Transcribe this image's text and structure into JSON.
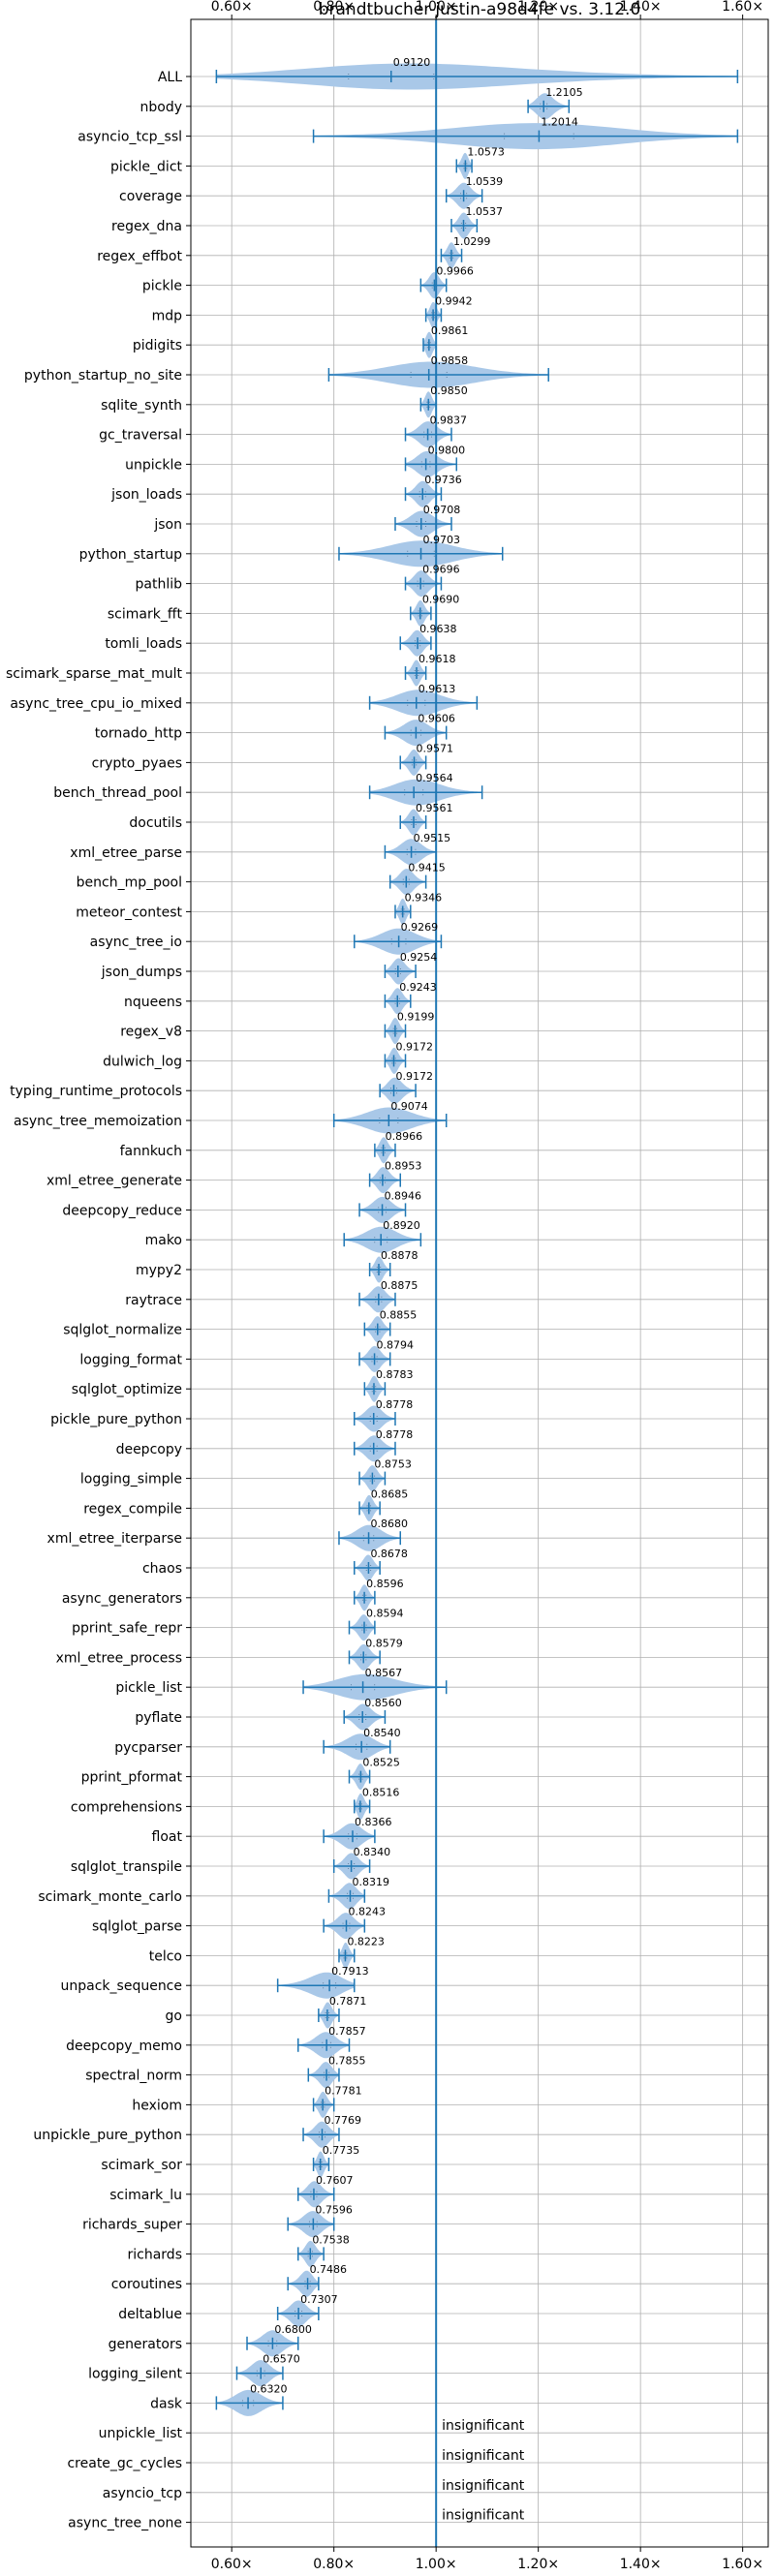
{
  "chart_data": {
    "type": "violin",
    "title": "brandtbucher-justin-a98d4fe vs. 3.12.0",
    "x_ticks": [
      "0.60×",
      "0.80×",
      "1.00×",
      "1.20×",
      "1.40×",
      "1.60×"
    ],
    "x_tick_values": [
      0.6,
      0.8,
      1.0,
      1.2,
      1.4,
      1.6
    ],
    "xlim": [
      0.52,
      1.65
    ],
    "reference_line": 1.0,
    "grid": true,
    "colors": {
      "violin": "#a9c8e8",
      "line": "#1f77b4",
      "grid": "#b0b0b0"
    },
    "benchmarks": [
      {
        "name": "ALL",
        "value": "0.9120",
        "v": 0.912,
        "min": 0.57,
        "max": 1.59
      },
      {
        "name": "nbody",
        "value": "1.2105",
        "v": 1.2105,
        "min": 1.18,
        "max": 1.26
      },
      {
        "name": "asyncio_tcp_ssl",
        "value": "1.2014",
        "v": 1.2014,
        "min": 0.76,
        "max": 1.59
      },
      {
        "name": "pickle_dict",
        "value": "1.0573",
        "v": 1.0573,
        "min": 1.04,
        "max": 1.07
      },
      {
        "name": "coverage",
        "value": "1.0539",
        "v": 1.0539,
        "min": 1.02,
        "max": 1.09
      },
      {
        "name": "regex_dna",
        "value": "1.0537",
        "v": 1.0537,
        "min": 1.03,
        "max": 1.08
      },
      {
        "name": "regex_effbot",
        "value": "1.0299",
        "v": 1.0299,
        "min": 1.01,
        "max": 1.05
      },
      {
        "name": "pickle",
        "value": "0.9966",
        "v": 0.9966,
        "min": 0.97,
        "max": 1.02
      },
      {
        "name": "mdp",
        "value": "0.9942",
        "v": 0.9942,
        "min": 0.98,
        "max": 1.01
      },
      {
        "name": "pidigits",
        "value": "0.9861",
        "v": 0.9861,
        "min": 0.975,
        "max": 1.0
      },
      {
        "name": "python_startup_no_site",
        "value": "0.9858",
        "v": 0.9858,
        "min": 0.79,
        "max": 1.22
      },
      {
        "name": "sqlite_synth",
        "value": "0.9850",
        "v": 0.985,
        "min": 0.97,
        "max": 1.0
      },
      {
        "name": "gc_traversal",
        "value": "0.9837",
        "v": 0.9837,
        "min": 0.94,
        "max": 1.03
      },
      {
        "name": "unpickle",
        "value": "0.9800",
        "v": 0.98,
        "min": 0.94,
        "max": 1.04
      },
      {
        "name": "json_loads",
        "value": "0.9736",
        "v": 0.9736,
        "min": 0.94,
        "max": 1.01
      },
      {
        "name": "json",
        "value": "0.9708",
        "v": 0.9708,
        "min": 0.92,
        "max": 1.03
      },
      {
        "name": "python_startup",
        "value": "0.9703",
        "v": 0.9703,
        "min": 0.81,
        "max": 1.13
      },
      {
        "name": "pathlib",
        "value": "0.9696",
        "v": 0.9696,
        "min": 0.94,
        "max": 1.01
      },
      {
        "name": "scimark_fft",
        "value": "0.9690",
        "v": 0.969,
        "min": 0.95,
        "max": 0.99
      },
      {
        "name": "tomli_loads",
        "value": "0.9638",
        "v": 0.9638,
        "min": 0.93,
        "max": 0.99
      },
      {
        "name": "scimark_sparse_mat_mult",
        "value": "0.9618",
        "v": 0.9618,
        "min": 0.94,
        "max": 0.98
      },
      {
        "name": "async_tree_cpu_io_mixed",
        "value": "0.9613",
        "v": 0.9613,
        "min": 0.87,
        "max": 1.08
      },
      {
        "name": "tornado_http",
        "value": "0.9606",
        "v": 0.9606,
        "min": 0.9,
        "max": 1.02
      },
      {
        "name": "crypto_pyaes",
        "value": "0.9571",
        "v": 0.9571,
        "min": 0.93,
        "max": 0.98
      },
      {
        "name": "bench_thread_pool",
        "value": "0.9564",
        "v": 0.9564,
        "min": 0.87,
        "max": 1.09
      },
      {
        "name": "docutils",
        "value": "0.9561",
        "v": 0.9561,
        "min": 0.93,
        "max": 0.98
      },
      {
        "name": "xml_etree_parse",
        "value": "0.9515",
        "v": 0.9515,
        "min": 0.9,
        "max": 1.0
      },
      {
        "name": "bench_mp_pool",
        "value": "0.9415",
        "v": 0.9415,
        "min": 0.91,
        "max": 0.98
      },
      {
        "name": "meteor_contest",
        "value": "0.9346",
        "v": 0.9346,
        "min": 0.92,
        "max": 0.95
      },
      {
        "name": "async_tree_io",
        "value": "0.9269",
        "v": 0.9269,
        "min": 0.84,
        "max": 1.01
      },
      {
        "name": "json_dumps",
        "value": "0.9254",
        "v": 0.9254,
        "min": 0.9,
        "max": 0.96
      },
      {
        "name": "nqueens",
        "value": "0.9243",
        "v": 0.9243,
        "min": 0.9,
        "max": 0.95
      },
      {
        "name": "regex_v8",
        "value": "0.9199",
        "v": 0.9199,
        "min": 0.9,
        "max": 0.94
      },
      {
        "name": "dulwich_log",
        "value": "0.9172",
        "v": 0.9172,
        "min": 0.9,
        "max": 0.94
      },
      {
        "name": "typing_runtime_protocols",
        "value": "0.9172",
        "v": 0.9172,
        "min": 0.89,
        "max": 0.96
      },
      {
        "name": "async_tree_memoization",
        "value": "0.9074",
        "v": 0.9074,
        "min": 0.8,
        "max": 1.02
      },
      {
        "name": "fannkuch",
        "value": "0.8966",
        "v": 0.8966,
        "min": 0.88,
        "max": 0.92
      },
      {
        "name": "xml_etree_generate",
        "value": "0.8953",
        "v": 0.8953,
        "min": 0.87,
        "max": 0.93
      },
      {
        "name": "deepcopy_reduce",
        "value": "0.8946",
        "v": 0.8946,
        "min": 0.85,
        "max": 0.94
      },
      {
        "name": "mako",
        "value": "0.8920",
        "v": 0.892,
        "min": 0.82,
        "max": 0.97
      },
      {
        "name": "mypy2",
        "value": "0.8878",
        "v": 0.8878,
        "min": 0.87,
        "max": 0.91
      },
      {
        "name": "raytrace",
        "value": "0.8875",
        "v": 0.8875,
        "min": 0.85,
        "max": 0.92
      },
      {
        "name": "sqlglot_normalize",
        "value": "0.8855",
        "v": 0.8855,
        "min": 0.86,
        "max": 0.91
      },
      {
        "name": "logging_format",
        "value": "0.8794",
        "v": 0.8794,
        "min": 0.85,
        "max": 0.91
      },
      {
        "name": "sqlglot_optimize",
        "value": "0.8783",
        "v": 0.8783,
        "min": 0.86,
        "max": 0.9
      },
      {
        "name": "pickle_pure_python",
        "value": "0.8778",
        "v": 0.8778,
        "min": 0.84,
        "max": 0.92
      },
      {
        "name": "deepcopy",
        "value": "0.8778",
        "v": 0.8778,
        "min": 0.84,
        "max": 0.92
      },
      {
        "name": "logging_simple",
        "value": "0.8753",
        "v": 0.8753,
        "min": 0.85,
        "max": 0.9
      },
      {
        "name": "regex_compile",
        "value": "0.8685",
        "v": 0.8685,
        "min": 0.85,
        "max": 0.89
      },
      {
        "name": "xml_etree_iterparse",
        "value": "0.8680",
        "v": 0.868,
        "min": 0.81,
        "max": 0.93
      },
      {
        "name": "chaos",
        "value": "0.8678",
        "v": 0.8678,
        "min": 0.84,
        "max": 0.89
      },
      {
        "name": "async_generators",
        "value": "0.8596",
        "v": 0.8596,
        "min": 0.84,
        "max": 0.88
      },
      {
        "name": "pprint_safe_repr",
        "value": "0.8594",
        "v": 0.8594,
        "min": 0.83,
        "max": 0.88
      },
      {
        "name": "xml_etree_process",
        "value": "0.8579",
        "v": 0.8579,
        "min": 0.83,
        "max": 0.89
      },
      {
        "name": "pickle_list",
        "value": "0.8567",
        "v": 0.8567,
        "min": 0.74,
        "max": 1.02
      },
      {
        "name": "pyflate",
        "value": "0.8560",
        "v": 0.856,
        "min": 0.82,
        "max": 0.9
      },
      {
        "name": "pycparser",
        "value": "0.8540",
        "v": 0.854,
        "min": 0.78,
        "max": 0.91
      },
      {
        "name": "pprint_pformat",
        "value": "0.8525",
        "v": 0.8525,
        "min": 0.83,
        "max": 0.87
      },
      {
        "name": "comprehensions",
        "value": "0.8516",
        "v": 0.8516,
        "min": 0.84,
        "max": 0.87
      },
      {
        "name": "float",
        "value": "0.8366",
        "v": 0.8366,
        "min": 0.78,
        "max": 0.88
      },
      {
        "name": "sqlglot_transpile",
        "value": "0.8340",
        "v": 0.834,
        "min": 0.8,
        "max": 0.87
      },
      {
        "name": "scimark_monte_carlo",
        "value": "0.8319",
        "v": 0.8319,
        "min": 0.79,
        "max": 0.86
      },
      {
        "name": "sqlglot_parse",
        "value": "0.8243",
        "v": 0.8243,
        "min": 0.78,
        "max": 0.86
      },
      {
        "name": "telco",
        "value": "0.8223",
        "v": 0.8223,
        "min": 0.81,
        "max": 0.84
      },
      {
        "name": "unpack_sequence",
        "value": "0.7913",
        "v": 0.7913,
        "min": 0.69,
        "max": 0.84
      },
      {
        "name": "go",
        "value": "0.7871",
        "v": 0.7871,
        "min": 0.77,
        "max": 0.81
      },
      {
        "name": "deepcopy_memo",
        "value": "0.7857",
        "v": 0.7857,
        "min": 0.73,
        "max": 0.83
      },
      {
        "name": "spectral_norm",
        "value": "0.7855",
        "v": 0.7855,
        "min": 0.75,
        "max": 0.81
      },
      {
        "name": "hexiom",
        "value": "0.7781",
        "v": 0.7781,
        "min": 0.76,
        "max": 0.8
      },
      {
        "name": "unpickle_pure_python",
        "value": "0.7769",
        "v": 0.7769,
        "min": 0.74,
        "max": 0.81
      },
      {
        "name": "scimark_sor",
        "value": "0.7735",
        "v": 0.7735,
        "min": 0.76,
        "max": 0.79
      },
      {
        "name": "scimark_lu",
        "value": "0.7607",
        "v": 0.7607,
        "min": 0.73,
        "max": 0.8
      },
      {
        "name": "richards_super",
        "value": "0.7596",
        "v": 0.7596,
        "min": 0.71,
        "max": 0.8
      },
      {
        "name": "richards",
        "value": "0.7538",
        "v": 0.7538,
        "min": 0.73,
        "max": 0.78
      },
      {
        "name": "coroutines",
        "value": "0.7486",
        "v": 0.7486,
        "min": 0.71,
        "max": 0.77
      },
      {
        "name": "deltablue",
        "value": "0.7307",
        "v": 0.7307,
        "min": 0.69,
        "max": 0.77
      },
      {
        "name": "generators",
        "value": "0.6800",
        "v": 0.68,
        "min": 0.63,
        "max": 0.73
      },
      {
        "name": "logging_silent",
        "value": "0.6570",
        "v": 0.657,
        "min": 0.61,
        "max": 0.7
      },
      {
        "name": "dask",
        "value": "0.6320",
        "v": 0.632,
        "min": 0.57,
        "max": 0.7
      }
    ],
    "insignificant": [
      "unpickle_list",
      "create_gc_cycles",
      "asyncio_tcp",
      "async_tree_none"
    ],
    "insignificant_text": "insignificant"
  }
}
